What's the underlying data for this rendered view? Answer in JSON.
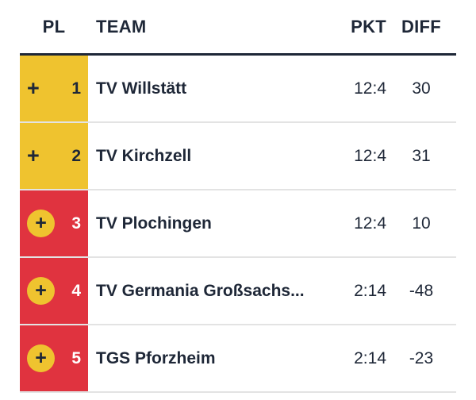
{
  "table": {
    "columns": {
      "pl": "PL",
      "team": "TEAM",
      "pkt": "PKT",
      "diff": "DIFF"
    },
    "expand_icon": "+",
    "rows": [
      {
        "rank": "1",
        "team": "TV Willstätt",
        "pkt": "12:4",
        "diff": "30",
        "variant": "yellow"
      },
      {
        "rank": "2",
        "team": "TV Kirchzell",
        "pkt": "12:4",
        "diff": "31",
        "variant": "yellow"
      },
      {
        "rank": "3",
        "team": "TV Plochingen",
        "pkt": "12:4",
        "diff": "10",
        "variant": "red"
      },
      {
        "rank": "4",
        "team": "TV Germania Großsachs...",
        "pkt": "2:14",
        "diff": "-48",
        "variant": "red"
      },
      {
        "rank": "5",
        "team": "TGS Pforzheim",
        "pkt": "2:14",
        "diff": "-23",
        "variant": "red"
      }
    ],
    "colors": {
      "promotion_yellow": "#efc32f",
      "playoff_red": "#e0333f",
      "text_dark": "#1e2737",
      "separator": "#e3e3e3"
    }
  }
}
